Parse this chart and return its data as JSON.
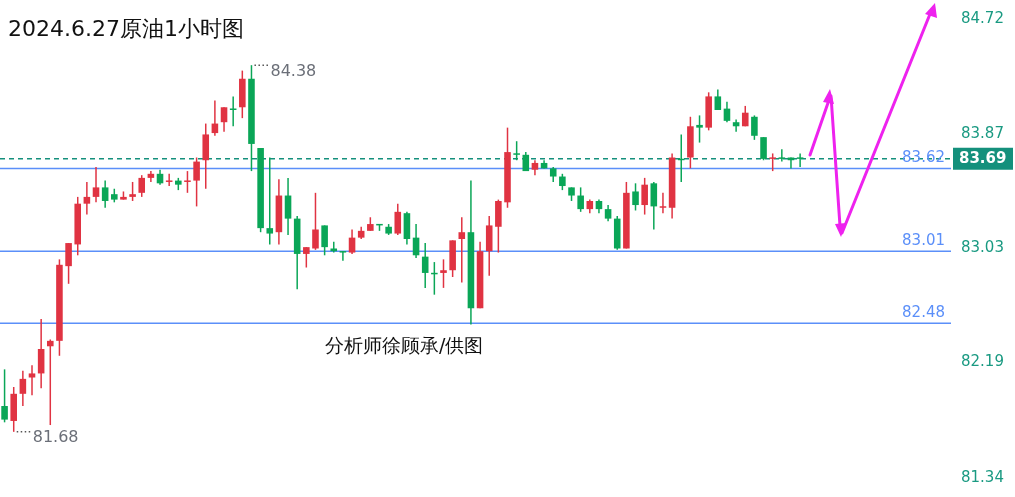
{
  "chart_data": {
    "type": "candlestick",
    "title": "2024.6.27原油1小时图",
    "categories": [
      null,
      null,
      null,
      null,
      null,
      null,
      null,
      null,
      null,
      null,
      null,
      null,
      null,
      null,
      null,
      null,
      null,
      null,
      null,
      null,
      null,
      null,
      null,
      null,
      null,
      null,
      null,
      null,
      null,
      null,
      null,
      null,
      null,
      null,
      null,
      null,
      null,
      null,
      null,
      null,
      null,
      null,
      null,
      null,
      null,
      null,
      null,
      null,
      null,
      null,
      null,
      null,
      null,
      null,
      null,
      null,
      null,
      null,
      null,
      null,
      null,
      null,
      null,
      null,
      null,
      null,
      null,
      null,
      null,
      null,
      null,
      null,
      null,
      null,
      null,
      null,
      null,
      null,
      null,
      null,
      null,
      null,
      null,
      null,
      null,
      null,
      null,
      null,
      null,
      null,
      null,
      null,
      null,
      null,
      null,
      null,
      null,
      null,
      null,
      null,
      null,
      null,
      null,
      null
    ],
    "ohlc": [
      [
        81.87,
        82.14,
        81.75,
        81.77
      ],
      [
        81.76,
        82.01,
        81.68,
        81.96
      ],
      [
        81.96,
        82.13,
        81.87,
        82.07
      ],
      [
        82.08,
        82.17,
        81.95,
        82.11
      ],
      [
        82.11,
        82.51,
        82.0,
        82.29
      ],
      [
        82.31,
        82.36,
        81.73,
        82.35
      ],
      [
        82.35,
        82.95,
        82.24,
        82.91
      ],
      [
        82.9,
        83.07,
        82.77,
        83.07
      ],
      [
        83.06,
        83.41,
        82.98,
        83.36
      ],
      [
        83.36,
        83.52,
        83.28,
        83.41
      ],
      [
        83.41,
        83.63,
        83.37,
        83.48
      ],
      [
        83.48,
        83.53,
        83.33,
        83.38
      ],
      [
        83.43,
        83.47,
        83.37,
        83.39
      ],
      [
        83.39,
        83.45,
        83.39,
        83.41
      ],
      [
        83.41,
        83.52,
        83.38,
        83.43
      ],
      [
        83.44,
        83.57,
        83.41,
        83.55
      ],
      [
        83.55,
        83.6,
        83.52,
        83.58
      ],
      [
        83.58,
        83.61,
        83.5,
        83.51
      ],
      [
        83.52,
        83.58,
        83.49,
        83.53
      ],
      [
        83.53,
        83.55,
        83.46,
        83.5
      ],
      [
        83.52,
        83.6,
        83.44,
        83.53
      ],
      [
        83.53,
        83.7,
        83.34,
        83.67
      ],
      [
        83.68,
        83.95,
        83.47,
        83.87
      ],
      [
        83.88,
        84.12,
        83.86,
        83.95
      ],
      [
        83.96,
        84.07,
        83.89,
        84.07
      ],
      [
        84.06,
        84.15,
        83.93,
        84.05
      ],
      [
        84.07,
        84.34,
        83.99,
        84.28
      ],
      [
        84.28,
        84.38,
        83.6,
        83.8
      ],
      [
        83.77,
        83.77,
        83.15,
        83.18
      ],
      [
        83.18,
        83.7,
        83.06,
        83.14
      ],
      [
        83.15,
        83.54,
        83.06,
        83.42
      ],
      [
        83.42,
        83.55,
        83.13,
        83.25
      ],
      [
        83.25,
        83.27,
        82.73,
        82.99
      ],
      [
        82.99,
        83.04,
        82.89,
        83.04
      ],
      [
        83.03,
        83.44,
        83.02,
        83.17
      ],
      [
        83.2,
        83.2,
        82.98,
        83.04
      ],
      [
        83.03,
        83.08,
        83.0,
        83.01
      ],
      [
        83.01,
        83.01,
        82.94,
        83.0
      ],
      [
        83.0,
        83.17,
        82.99,
        83.11
      ],
      [
        83.11,
        83.19,
        83.1,
        83.16
      ],
      [
        83.16,
        83.26,
        83.16,
        83.21
      ],
      [
        83.21,
        83.21,
        83.16,
        83.2
      ],
      [
        83.19,
        83.21,
        83.13,
        83.14
      ],
      [
        83.14,
        83.36,
        83.13,
        83.3
      ],
      [
        83.29,
        83.3,
        83.06,
        83.1
      ],
      [
        83.11,
        83.21,
        82.96,
        82.98
      ],
      [
        82.97,
        83.07,
        82.74,
        82.85
      ],
      [
        82.85,
        82.93,
        82.69,
        82.84
      ],
      [
        82.85,
        82.95,
        82.74,
        82.87
      ],
      [
        82.87,
        83.09,
        82.82,
        83.09
      ],
      [
        83.1,
        83.26,
        82.78,
        83.15
      ],
      [
        83.15,
        83.53,
        82.47,
        82.59
      ],
      [
        82.59,
        83.08,
        82.59,
        83.01
      ],
      [
        83.01,
        83.27,
        82.83,
        83.2
      ],
      [
        83.19,
        83.39,
        83.0,
        83.38
      ],
      [
        83.37,
        83.92,
        83.33,
        83.74
      ],
      [
        83.73,
        83.82,
        83.68,
        83.72
      ],
      [
        83.72,
        83.74,
        83.6,
        83.6
      ],
      [
        83.61,
        83.68,
        83.57,
        83.66
      ],
      [
        83.66,
        83.68,
        83.62,
        83.62
      ],
      [
        83.62,
        83.63,
        83.52,
        83.56
      ],
      [
        83.56,
        83.58,
        83.46,
        83.49
      ],
      [
        83.48,
        83.48,
        83.38,
        83.42
      ],
      [
        83.42,
        83.48,
        83.3,
        83.32
      ],
      [
        83.32,
        83.39,
        83.29,
        83.38
      ],
      [
        83.38,
        83.39,
        83.29,
        83.32
      ],
      [
        83.32,
        83.35,
        83.23,
        83.25
      ],
      [
        83.25,
        83.27,
        83.02,
        83.03
      ],
      [
        83.03,
        83.52,
        83.03,
        83.44
      ],
      [
        83.45,
        83.51,
        83.31,
        83.35
      ],
      [
        83.35,
        83.55,
        83.28,
        83.5
      ],
      [
        83.51,
        83.52,
        83.17,
        83.34
      ],
      [
        83.33,
        83.44,
        83.29,
        83.34
      ],
      [
        83.33,
        83.73,
        83.25,
        83.7
      ],
      [
        83.69,
        83.87,
        83.52,
        83.68
      ],
      [
        83.7,
        84.0,
        83.62,
        83.93
      ],
      [
        83.94,
        84.01,
        83.81,
        83.92
      ],
      [
        83.92,
        84.18,
        83.9,
        84.15
      ],
      [
        84.15,
        84.2,
        84.05,
        84.05
      ],
      [
        84.06,
        84.11,
        83.96,
        83.97
      ],
      [
        83.96,
        83.98,
        83.89,
        83.93
      ],
      [
        83.93,
        84.08,
        83.93,
        84.03
      ],
      [
        84.0,
        84.01,
        83.83,
        83.86
      ],
      [
        83.85,
        83.85,
        83.68,
        83.69
      ],
      [
        83.69,
        83.73,
        83.6,
        83.7
      ],
      [
        83.7,
        83.76,
        83.67,
        83.69
      ],
      [
        83.7,
        83.7,
        83.62,
        83.68
      ],
      [
        83.7,
        83.73,
        83.63,
        83.69
      ],
      null,
      null,
      null,
      null,
      null,
      null,
      null,
      null,
      null,
      null,
      null,
      null,
      null,
      null,
      null,
      null
    ],
    "colors": [
      "#0aa657",
      "#e03342",
      "#e03342",
      "#e03342",
      "#e03342",
      "#e03342",
      "#e03342",
      "#e03342",
      "#e03342",
      "#e03342",
      "#e03342",
      "#0aa657",
      "#0aa657",
      "#e03342",
      "#e03342",
      "#e03342",
      "#e03342",
      "#0aa657",
      "#e03342",
      "#0aa657",
      "#e03342",
      "#e03342",
      "#e03342",
      "#e03342",
      "#e03342",
      "#0aa657",
      "#e03342",
      "#0aa657",
      "#0aa657",
      "#0aa657",
      "#e03342",
      "#0aa657",
      "#0aa657",
      "#e03342",
      "#e03342",
      "#0aa657",
      "#0aa657",
      "#0aa657",
      "#e03342",
      "#e03342",
      "#e03342",
      "#0aa657",
      "#0aa657",
      "#e03342",
      "#0aa657",
      "#0aa657",
      "#0aa657",
      "#0aa657",
      "#e03342",
      "#e03342",
      "#e03342",
      "#0aa657",
      "#e03342",
      "#e03342",
      "#e03342",
      "#e03342",
      "#0aa657",
      "#0aa657",
      "#e03342",
      "#0aa657",
      "#0aa657",
      "#0aa657",
      "#0aa657",
      "#0aa657",
      "#e03342",
      "#0aa657",
      "#0aa657",
      "#0aa657",
      "#e03342",
      "#0aa657",
      "#e03342",
      "#0aa657",
      "#e03342",
      "#e03342",
      "#0aa657",
      "#e03342",
      "#0aa657",
      "#e03342",
      "#0aa657",
      "#0aa657",
      "#0aa657",
      "#e03342",
      "#0aa657",
      "#0aa657",
      "#e03342",
      "#0aa657",
      "#0aa657",
      "#0aa657",
      null,
      null,
      null,
      null,
      null,
      null,
      null,
      null,
      null,
      null,
      null,
      null,
      null,
      null,
      null,
      null
    ],
    "ylim": [
      81.34,
      84.72
    ],
    "yticks": [
      84.72,
      83.87,
      83.03,
      82.19,
      81.34
    ],
    "tick_labels": "y",
    "ref_lines": [
      {
        "axis": "y",
        "value": 83.62,
        "label": "83.62",
        "color": "#5b8ff9"
      },
      {
        "axis": "y",
        "value": 83.01,
        "label": "83.01",
        "color": "#5b8ff9"
      },
      {
        "axis": "y",
        "value": 82.48,
        "label": "82.48",
        "color": "#5b8ff9"
      },
      {
        "axis": "y",
        "value": 83.69,
        "label": "83.69",
        "color": "#14907c",
        "line_style": "dashed"
      }
    ],
    "annotations": [
      "84.38",
      "81.68",
      "分析师徐顾承/供图"
    ]
  }
}
